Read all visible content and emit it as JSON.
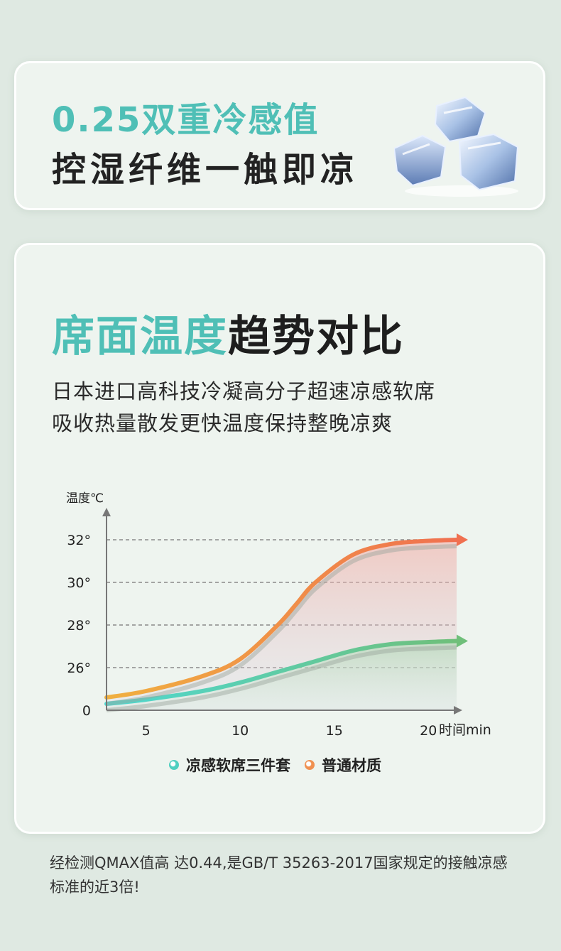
{
  "top_card": {
    "headline": "0.25双重冷感值",
    "subline": "控湿纤维一触即凉"
  },
  "main_card": {
    "title_accent": "席面温度",
    "title_dark": "趋势对比",
    "desc_line1": "日本进口高科技冷凝高分子超速凉感软席",
    "desc_line2": "吸收热量散发更快温度保持整晚凉爽"
  },
  "chart_data": {
    "type": "line",
    "ylabel": "温度℃",
    "xlabel": "时间min",
    "x_ticks": [
      5,
      10,
      15,
      20
    ],
    "y_ticks": [
      "0",
      "26°",
      "28°",
      "30°",
      "32°"
    ],
    "x_range": [
      2.9,
      21.5
    ],
    "series": [
      {
        "name": "凉感软席三件套",
        "color": "#4fd8d0",
        "color_end": "#6fbf7a",
        "x": [
          2.9,
          5,
          8,
          10,
          12,
          14,
          16,
          18,
          20,
          21.5
        ],
        "y": [
          24.3,
          24.5,
          24.9,
          25.3,
          25.8,
          26.3,
          26.8,
          27.1,
          27.2,
          27.25
        ]
      },
      {
        "name": "普通材质",
        "color": "#f0b040",
        "color_end": "#f07050",
        "x": [
          2.9,
          5,
          8,
          10,
          12,
          13,
          14,
          16,
          18,
          20,
          21.5
        ],
        "y": [
          24.6,
          24.9,
          25.6,
          26.4,
          28.0,
          29.0,
          30.0,
          31.3,
          31.8,
          31.95,
          32.0
        ]
      }
    ],
    "legend": [
      {
        "label": "凉感软席三件套",
        "color": "#4fcfc0"
      },
      {
        "label": "普通材质",
        "color": "#f09050"
      }
    ]
  },
  "footnote": "经检测QMAX值高 达0.44,是GB/T 35263-2017国家规定的接触凉感标准的近3倍!"
}
